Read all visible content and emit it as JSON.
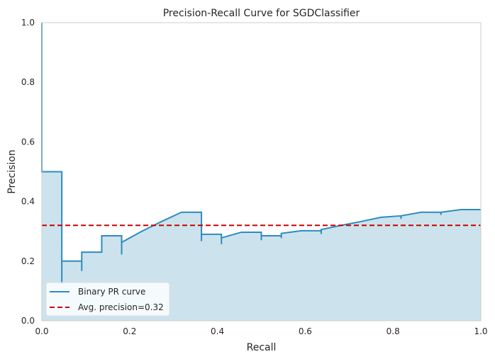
{
  "chart_data": {
    "type": "area",
    "title": "Precision-Recall Curve for SGDClassifier",
    "xlabel": "Recall",
    "ylabel": "Precision",
    "xlim": [
      0,
      1
    ],
    "ylim": [
      0,
      1
    ],
    "x_ticks": [
      "0.0",
      "0.2",
      "0.4",
      "0.6",
      "0.8",
      "1.0"
    ],
    "y_ticks": [
      "0.0",
      "0.2",
      "0.4",
      "0.6",
      "0.8",
      "1.0"
    ],
    "grid": false,
    "legend_position": "lower-left",
    "series": [
      {
        "name": "Binary PR curve",
        "drawstyle": "steps-post",
        "color": "#2e8bc0",
        "fill_color": "#cce3ed",
        "recall": [
          0.0,
          0.0,
          0.0455,
          0.0455,
          0.0909,
          0.0909,
          0.1364,
          0.1364,
          0.1818,
          0.1818,
          0.2273,
          0.2727,
          0.3182,
          0.3636,
          0.3636,
          0.4091,
          0.4091,
          0.4545,
          0.5,
          0.5,
          0.5455,
          0.5455,
          0.5909,
          0.6364,
          0.6364,
          0.6818,
          0.7273,
          0.7727,
          0.8182,
          0.8636,
          0.9091,
          0.9545,
          1.0
        ],
        "precision": [
          1.0,
          0.5,
          0.5,
          0.2,
          0.2,
          0.23,
          0.23,
          0.285,
          0.285,
          0.263,
          0.3,
          0.333,
          0.364,
          0.364,
          0.29,
          0.29,
          0.278,
          0.297,
          0.297,
          0.285,
          0.285,
          0.293,
          0.302,
          0.302,
          0.306,
          0.32,
          0.333,
          0.347,
          0.352,
          0.364,
          0.364,
          0.373,
          0.373
        ],
        "ticks": [
          {
            "recall": 0.0455,
            "from": 0.2,
            "to": 0.125
          },
          {
            "recall": 0.0909,
            "from": 0.2,
            "to": 0.167
          },
          {
            "recall": 0.1818,
            "from": 0.263,
            "to": 0.222
          },
          {
            "recall": 0.3636,
            "from": 0.29,
            "to": 0.267
          },
          {
            "recall": 0.4091,
            "from": 0.278,
            "to": 0.257
          },
          {
            "recall": 0.5,
            "from": 0.285,
            "to": 0.27
          },
          {
            "recall": 0.5455,
            "from": 0.285,
            "to": 0.277
          },
          {
            "recall": 0.6364,
            "from": 0.302,
            "to": 0.291
          },
          {
            "recall": 0.8182,
            "from": 0.352,
            "to": 0.342
          },
          {
            "recall": 0.9091,
            "from": 0.364,
            "to": 0.355
          }
        ]
      },
      {
        "name": "Avg. precision=0.32",
        "type": "hline",
        "value": 0.32,
        "color": "#cc0000",
        "linestyle": "dashed"
      }
    ]
  }
}
